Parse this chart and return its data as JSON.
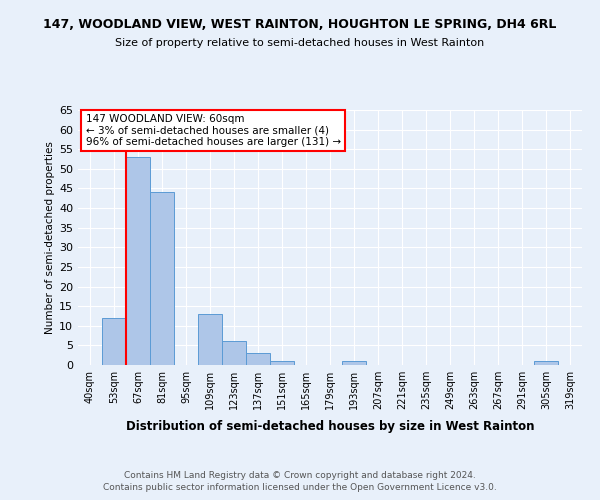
{
  "title": "147, WOODLAND VIEW, WEST RAINTON, HOUGHTON LE SPRING, DH4 6RL",
  "subtitle": "Size of property relative to semi-detached houses in West Rainton",
  "xlabel": "Distribution of semi-detached houses by size in West Rainton",
  "ylabel": "Number of semi-detached properties",
  "categories": [
    "40sqm",
    "53sqm",
    "67sqm",
    "81sqm",
    "95sqm",
    "109sqm",
    "123sqm",
    "137sqm",
    "151sqm",
    "165sqm",
    "179sqm",
    "193sqm",
    "207sqm",
    "221sqm",
    "235sqm",
    "249sqm",
    "263sqm",
    "267sqm",
    "291sqm",
    "305sqm",
    "319sqm"
  ],
  "values": [
    0,
    12,
    53,
    44,
    0,
    13,
    6,
    3,
    1,
    0,
    0,
    1,
    0,
    0,
    0,
    0,
    0,
    0,
    0,
    1,
    0
  ],
  "bar_color": "#aec6e8",
  "bar_edge_color": "#5b9bd5",
  "property_line_x": 1.5,
  "ylim": [
    0,
    65
  ],
  "yticks": [
    0,
    5,
    10,
    15,
    20,
    25,
    30,
    35,
    40,
    45,
    50,
    55,
    60,
    65
  ],
  "annotation_title": "147 WOODLAND VIEW: 60sqm",
  "annotation_line1": "← 3% of semi-detached houses are smaller (4)",
  "annotation_line2": "96% of semi-detached houses are larger (131) →",
  "footer1": "Contains HM Land Registry data © Crown copyright and database right 2024.",
  "footer2": "Contains public sector information licensed under the Open Government Licence v3.0.",
  "bg_color": "#e8f0fa",
  "plot_bg_color": "#e8f0fa"
}
